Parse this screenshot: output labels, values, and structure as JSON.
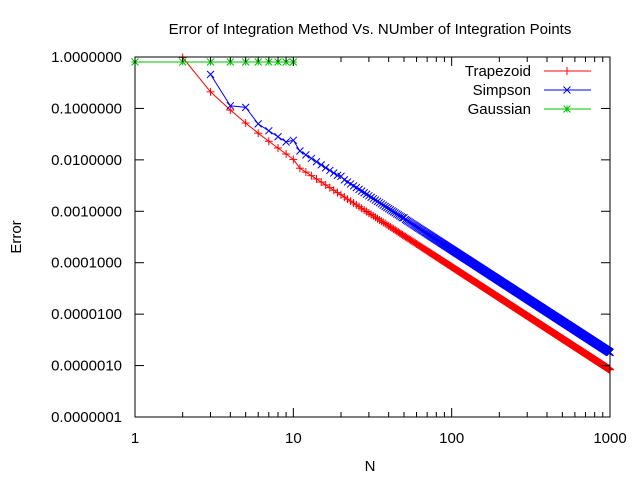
{
  "chart_data": {
    "type": "line",
    "title": "Error of Integration Method Vs. NUmber of Integration Points",
    "xlabel": "N",
    "ylabel": "Error",
    "xscale": "log",
    "yscale": "log",
    "xlim": [
      1,
      1000
    ],
    "ylim": [
      1e-07,
      1
    ],
    "x_ticks": [
      1,
      10,
      100,
      1000
    ],
    "x_tick_labels": [
      "1",
      "10",
      "100",
      "1000"
    ],
    "y_ticks": [
      1,
      0.1,
      0.01,
      0.001,
      0.0001,
      1e-05,
      1e-06,
      1e-07
    ],
    "y_tick_labels": [
      "1.0000000",
      "0.1000000",
      "0.0100000",
      "0.0010000",
      "0.0001000",
      "0.0000100",
      "0.0000010",
      "0.0000001"
    ],
    "grid": false,
    "legend": "top-right",
    "series": [
      {
        "name": "Trapezoid",
        "color": "#ff0000",
        "marker": "plus",
        "n_range": [
          2,
          1000
        ],
        "model": {
          "coefficient": 0.833,
          "exponent": -2
        },
        "points": [
          [
            2,
            0.98
          ],
          [
            3,
            0.21
          ],
          [
            4,
            0.093
          ],
          [
            5,
            0.052
          ],
          [
            6,
            0.033
          ],
          [
            7,
            0.023
          ],
          [
            8,
            0.017
          ],
          [
            9,
            0.013
          ],
          [
            10,
            0.0102
          ],
          [
            20,
            0.0021
          ],
          [
            50,
            0.00033
          ],
          [
            100,
            8.3e-05
          ],
          [
            200,
            2.08e-05
          ],
          [
            500,
            3.3e-06
          ],
          [
            1000,
            8.3e-07
          ]
        ]
      },
      {
        "name": "Simpson",
        "color": "#0000ff",
        "marker": "cross",
        "n_range": [
          3,
          1000
        ],
        "model": {
          "coefficient": 1.8,
          "exponent": -2
        },
        "points": [
          [
            3,
            0.46
          ],
          [
            5,
            0.105
          ],
          [
            10,
            0.024
          ],
          [
            20,
            0.0048
          ],
          [
            50,
            0.00075
          ],
          [
            100,
            0.00018
          ],
          [
            200,
            4.5e-05
          ],
          [
            500,
            7.2e-06
          ],
          [
            1000,
            1.8e-06
          ]
        ]
      },
      {
        "name": "Gaussian",
        "color": "#00c000",
        "marker": "star",
        "n_range": [
          1,
          10
        ],
        "points": [
          [
            1,
            0.8
          ],
          [
            2,
            0.8
          ],
          [
            3,
            0.8
          ],
          [
            4,
            0.8
          ],
          [
            5,
            0.8
          ],
          [
            6,
            0.8
          ],
          [
            7,
            0.8
          ],
          [
            8,
            0.8
          ],
          [
            9,
            0.8
          ],
          [
            10,
            0.8
          ]
        ]
      }
    ]
  }
}
